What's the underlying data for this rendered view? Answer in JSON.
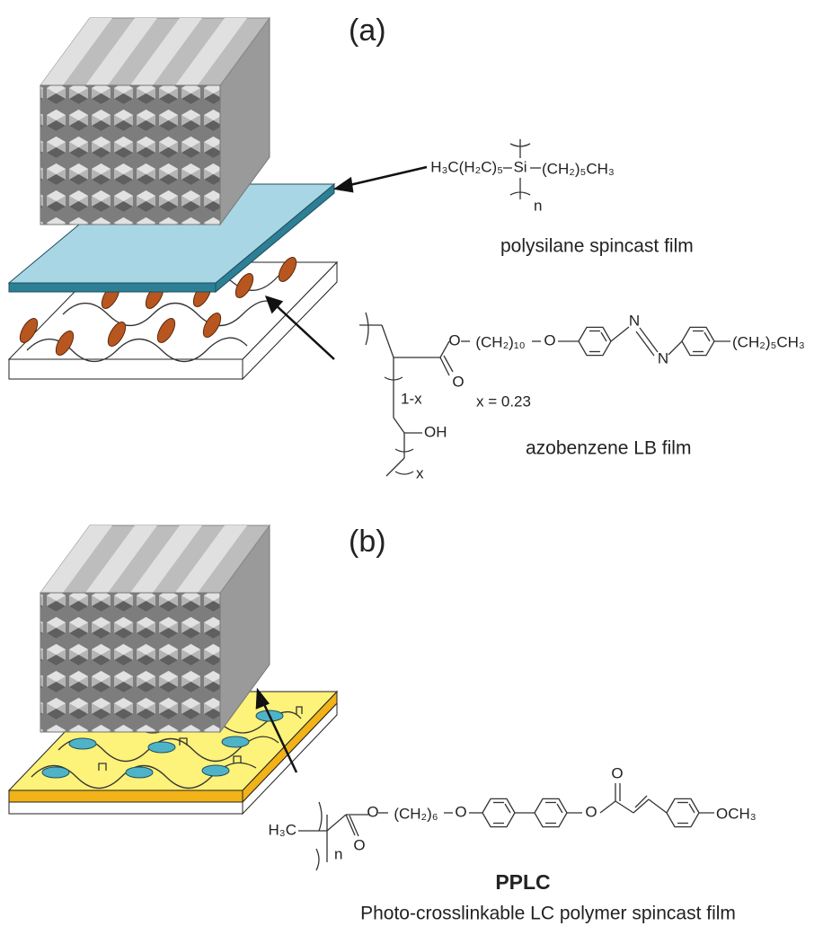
{
  "panel_a": {
    "label": "(a)",
    "polysilane": {
      "left_group": "H₃C(H₂C)₅",
      "atom": "Si",
      "right_group": "(CH₂)₅CH₃",
      "repeat": "n",
      "caption": "polysilane spincast film"
    },
    "azobenzene": {
      "ester_o": "O",
      "spacer": "(CH₂)₁₀",
      "ether_o": "O",
      "n1": "N",
      "n2": "N",
      "tail": "(CH₂)₅CH₃",
      "carbonyl_o": "O",
      "repeat_1": "1-x",
      "hydroxyl": "OH",
      "repeat_2": "x",
      "fraction": "x = 0.23",
      "caption": "azobenzene LB film"
    }
  },
  "panel_b": {
    "label": "(b)",
    "pplc": {
      "methyl": "H₃C",
      "ester_o": "O",
      "spacer": "(CH₂)₆",
      "ether_o": "O",
      "cinnamate_o": "O",
      "carbonyl_o2": "O",
      "methoxy": "OCH₃",
      "repeat": "n",
      "carbonyl_o1": "O",
      "name": "PPLC",
      "caption": "Photo-crosslinkable LC polymer spincast film"
    }
  }
}
